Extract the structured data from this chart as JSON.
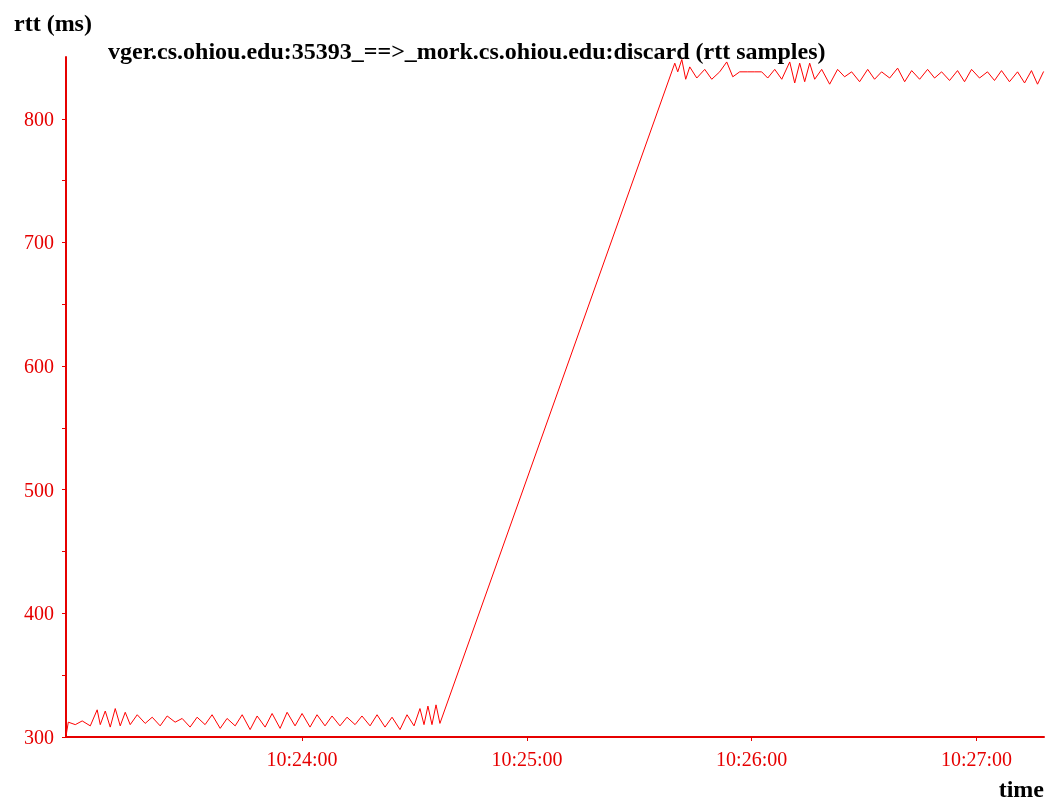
{
  "chart_data": {
    "type": "line",
    "title": "vger.cs.ohiou.edu:35393_==>_mork.cs.ohiou.edu:discard (rtt samples)",
    "xlabel": "time",
    "ylabel": "rtt (ms)",
    "xlim": [
      10.3825,
      10.455
    ],
    "ylim": [
      300,
      850
    ],
    "xticks": [
      {
        "value": 10.4,
        "label": "10:24:00"
      },
      {
        "value": 10.41667,
        "label": "10:25:00"
      },
      {
        "value": 10.43333,
        "label": "10:26:00"
      },
      {
        "value": 10.45,
        "label": "10:27:00"
      }
    ],
    "yticks": [
      300,
      {
        "value": 350,
        "label": null
      },
      400,
      {
        "value": 450,
        "label": null
      },
      500,
      {
        "value": 550,
        "label": null
      },
      600,
      {
        "value": 650,
        "label": null
      },
      700,
      {
        "value": 750,
        "label": null
      },
      800
    ],
    "series": [
      {
        "color": "#ff0000",
        "x": [
          10.38252,
          10.38267,
          10.38319,
          10.3837,
          10.3843,
          10.38481,
          10.38504,
          10.38541,
          10.38578,
          10.38615,
          10.38652,
          10.38689,
          10.38726,
          10.38778,
          10.38837,
          10.38889,
          10.38948,
          10.39,
          10.39059,
          10.39111,
          10.3917,
          10.39222,
          10.39281,
          10.39333,
          10.39393,
          10.39444,
          10.39504,
          10.39556,
          10.39615,
          10.39667,
          10.39726,
          10.39778,
          10.39837,
          10.39889,
          10.39948,
          10.4,
          10.40059,
          10.40111,
          10.4017,
          10.40222,
          10.40281,
          10.40333,
          10.40393,
          10.40444,
          10.40504,
          10.40556,
          10.40615,
          10.40667,
          10.40726,
          10.40778,
          10.4083,
          10.40874,
          10.40904,
          10.40933,
          10.40963,
          10.40993,
          10.41022,
          10.42763,
          10.42785,
          10.42815,
          10.42844,
          10.42874,
          10.42926,
          10.42985,
          10.43037,
          10.43096,
          10.43148,
          10.43193,
          10.43244,
          10.43304,
          10.43356,
          10.43407,
          10.43452,
          10.43504,
          10.43556,
          10.43615,
          10.43652,
          10.43689,
          10.43726,
          10.43763,
          10.438,
          10.43852,
          10.43911,
          10.4397,
          10.44022,
          10.44074,
          10.44133,
          10.44193,
          10.44244,
          10.44296,
          10.44356,
          10.44415,
          10.44467,
          10.44519,
          10.44578,
          10.44637,
          10.44689,
          10.44741,
          10.448,
          10.44859,
          10.44911,
          10.44963,
          10.45022,
          10.45081,
          10.45133,
          10.45185,
          10.45244,
          10.45304,
          10.45356,
          10.45407,
          10.45452,
          10.45496
        ],
        "values": [
          302,
          312,
          310,
          313,
          309,
          322,
          310,
          321,
          308,
          323,
          309,
          320,
          310,
          318,
          311,
          316,
          309,
          317,
          312,
          315,
          308,
          316,
          310,
          318,
          307,
          315,
          309,
          318,
          306,
          317,
          308,
          319,
          307,
          320,
          309,
          319,
          308,
          318,
          309,
          317,
          309,
          316,
          310,
          317,
          309,
          318,
          308,
          316,
          306,
          318,
          309,
          323,
          310,
          325,
          310,
          326,
          311,
          845,
          838,
          848,
          832,
          842,
          833,
          840,
          832,
          838,
          846,
          834,
          838,
          838,
          838,
          838,
          833,
          840,
          832,
          846,
          829,
          845,
          830,
          845,
          832,
          840,
          828,
          840,
          834,
          838,
          830,
          840,
          832,
          838,
          833,
          841,
          830,
          839,
          832,
          840,
          833,
          838,
          831,
          839,
          830,
          840,
          833,
          838,
          831,
          839,
          830,
          838,
          829,
          839,
          828,
          838
        ]
      }
    ]
  }
}
